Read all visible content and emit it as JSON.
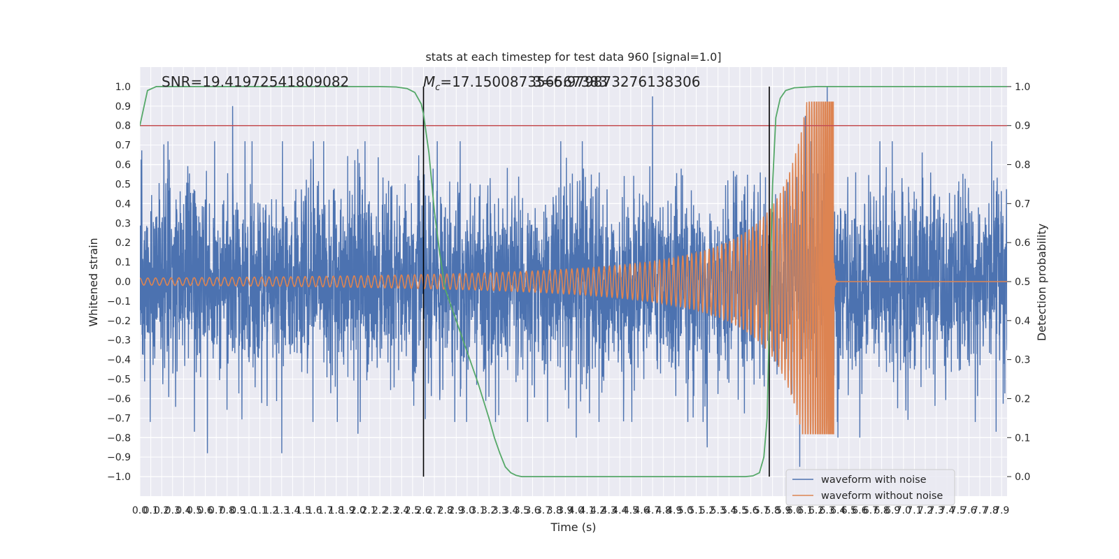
{
  "chart_data": {
    "type": "line",
    "title": "stats at each timestep for test data 960 [signal=1.0]",
    "xlabel": "Time (s)",
    "ylabel": "Whitened strain",
    "y2label": "Detection probability",
    "xlim": [
      0,
      7.95
    ],
    "ylim": [
      -1.1,
      1.1
    ],
    "y2lim": [
      -0.05,
      1.05
    ],
    "x_tick_labels": [
      "0.0",
      "0.1",
      "0.2",
      "0.3",
      "0.4",
      "0.5",
      "0.6",
      "0.7",
      "0.8",
      "0.9",
      "1.0",
      "1.1",
      "1.2",
      "1.3",
      "1.4",
      "1.5",
      "1.6",
      "1.7",
      "1.8",
      "1.9",
      "2.0",
      "2.1",
      "2.2",
      "2.3",
      "2.4",
      "2.5",
      "2.6",
      "2.7",
      "2.8",
      "2.9",
      "3.0",
      "3.1",
      "3.2",
      "3.3",
      "3.4",
      "3.5",
      "3.6",
      "3.7",
      "3.8",
      "3.9",
      "4.0",
      "4.1",
      "4.2",
      "4.3",
      "4.4",
      "4.5",
      "4.6",
      "4.7",
      "4.8",
      "4.9",
      "5.0",
      "5.1",
      "5.2",
      "5.3",
      "5.4",
      "5.5",
      "5.6",
      "5.7",
      "5.8",
      "5.9",
      "6.0",
      "6.1",
      "6.2",
      "6.3",
      "6.4",
      "6.5",
      "6.6",
      "6.7",
      "6.8",
      "6.9",
      "7.0",
      "7.1",
      "7.2",
      "7.3",
      "7.4",
      "7.5",
      "7.6",
      "7.7",
      "7.8",
      "7.9"
    ],
    "y_tick_labels": [
      "1.0",
      "0.9",
      "0.8",
      "0.7",
      "0.6",
      "0.5",
      "0.4",
      "0.3",
      "0.2",
      "0.1",
      "0.0",
      "−0.1",
      "−0.2",
      "−0.3",
      "−0.4",
      "−0.5",
      "−0.6",
      "−0.7",
      "−0.8",
      "−0.9",
      "−1.0"
    ],
    "y2_tick_labels": [
      "1.0",
      "0.9",
      "0.8",
      "0.7",
      "0.6",
      "0.5",
      "0.4",
      "0.3",
      "0.2",
      "0.1",
      "0.0"
    ],
    "annotations": {
      "snr": "SNR=19.41972541809082",
      "mc_symbol": "M",
      "mc_sub": "c",
      "mc_value": "=17.150087356567383",
      "overlap": "3=6.979873276138306"
    },
    "grid": true,
    "legend": {
      "placement": "lower-right",
      "entries": [
        "waveform with noise",
        "waveform without noise"
      ]
    },
    "threshold": 0.9,
    "vlines_x": [
      2.6,
      5.77
    ],
    "series": [
      {
        "name": "waveform with noise",
        "axis": "left",
        "color": "#4c72b0",
        "style": "noise",
        "band_std": 0.24,
        "peaks": [
          [
            0.85,
            0.9
          ],
          [
            0.62,
            -0.88
          ],
          [
            4.7,
            0.95
          ],
          [
            6.3,
            1.0
          ],
          [
            6.1,
            0.85
          ],
          [
            6.05,
            -0.95
          ],
          [
            4.0,
            -0.8
          ],
          [
            5.2,
            -0.85
          ],
          [
            6.4,
            -0.8
          ],
          [
            6.6,
            -0.8
          ],
          [
            7.85,
            -0.77
          ],
          [
            0.5,
            -0.77
          ],
          [
            1.3,
            -0.88
          ],
          [
            2.0,
            -0.78
          ]
        ]
      },
      {
        "name": "waveform without noise",
        "axis": "left",
        "color": "#dd8452",
        "style": "chirp",
        "merger_time": 6.36,
        "amplitude_start": 0.018,
        "amplitude_peak": 0.92,
        "amplitude_min": -0.78
      },
      {
        "name": "detection probability",
        "axis": "right",
        "color": "#55a868",
        "x": [
          0.0,
          0.07,
          0.15,
          0.3,
          0.6,
          1.0,
          1.5,
          2.0,
          2.2,
          2.35,
          2.45,
          2.52,
          2.58,
          2.6,
          2.65,
          2.7,
          2.75,
          2.8,
          2.9,
          3.0,
          3.1,
          3.2,
          3.25,
          3.3,
          3.35,
          3.4,
          3.45,
          3.5,
          3.6,
          3.8,
          4.0,
          4.5,
          5.0,
          5.4,
          5.55,
          5.62,
          5.68,
          5.72,
          5.75,
          5.77,
          5.8,
          5.83,
          5.87,
          5.92,
          6.0,
          6.2,
          6.5,
          7.0,
          7.5,
          7.95
        ],
        "y": [
          0.9,
          0.99,
          1.0,
          1.0,
          1.0,
          1.0,
          1.0,
          1.0,
          1.0,
          0.999,
          0.995,
          0.985,
          0.955,
          0.93,
          0.83,
          0.68,
          0.57,
          0.48,
          0.4,
          0.32,
          0.24,
          0.15,
          0.1,
          0.06,
          0.025,
          0.01,
          0.003,
          0.0,
          0.0,
          0.0,
          0.0,
          0.0,
          0.0,
          0.0,
          0.0,
          0.002,
          0.01,
          0.05,
          0.15,
          0.4,
          0.75,
          0.92,
          0.97,
          0.99,
          0.997,
          1.0,
          1.0,
          1.0,
          1.0,
          1.0
        ]
      }
    ]
  }
}
